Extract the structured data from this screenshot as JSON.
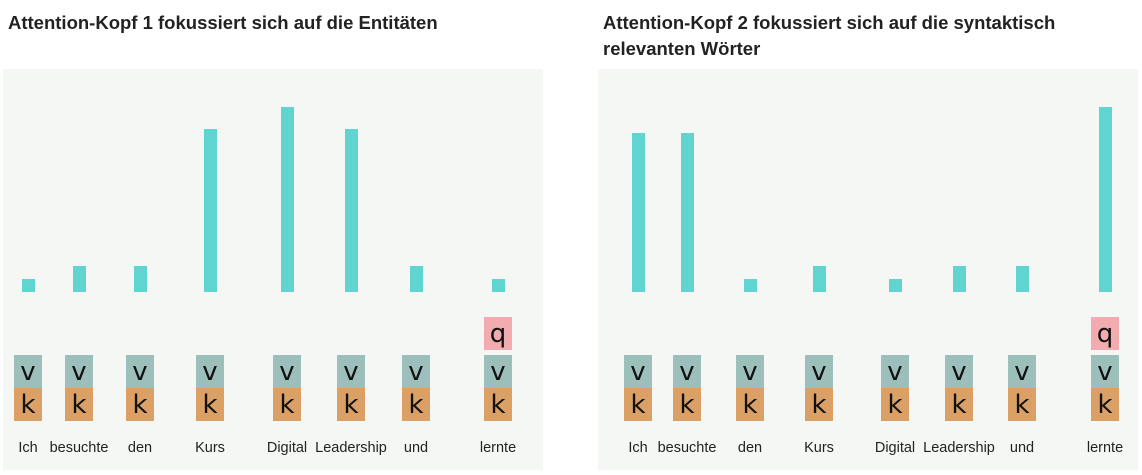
{
  "colors": {
    "panel_bg": "#f5f7f4",
    "bar": "#5fd4d0",
    "value_cell": "#9cbfbc",
    "key_cell": "#dba065",
    "query_cell": "#f2abae"
  },
  "panels": [
    {
      "title": "Attention-Kopf 1 fokussiert sich auf die Entitäten",
      "query_label": "q",
      "query_token_index": 7,
      "tokens": [
        {
          "word": "Ich",
          "v": "v",
          "k": "k",
          "weight": 0.07
        },
        {
          "word": "besuchte",
          "v": "v",
          "k": "k",
          "weight": 0.14
        },
        {
          "word": "den",
          "v": "v",
          "k": "k",
          "weight": 0.14
        },
        {
          "word": "Kurs",
          "v": "v",
          "k": "k",
          "weight": 0.88
        },
        {
          "word": "Digital",
          "v": "v",
          "k": "k",
          "weight": 1.0
        },
        {
          "word": "Leadership",
          "v": "v",
          "k": "k",
          "weight": 0.88
        },
        {
          "word": "und",
          "v": "v",
          "k": "k",
          "weight": 0.14
        },
        {
          "word": "lernte",
          "v": "v",
          "k": "k",
          "weight": 0.07
        }
      ]
    },
    {
      "title": "Attention-Kopf 2 fokussiert sich auf die syntaktisch relevanten Wörter",
      "query_label": "q",
      "query_token_index": 7,
      "tokens": [
        {
          "word": "Ich",
          "v": "v",
          "k": "k",
          "weight": 0.86
        },
        {
          "word": "besuchte",
          "v": "v",
          "k": "k",
          "weight": 0.86
        },
        {
          "word": "den",
          "v": "v",
          "k": "k",
          "weight": 0.07
        },
        {
          "word": "Kurs",
          "v": "v",
          "k": "k",
          "weight": 0.14
        },
        {
          "word": "Digital",
          "v": "v",
          "k": "k",
          "weight": 0.07
        },
        {
          "word": "Leadership",
          "v": "v",
          "k": "k",
          "weight": 0.14
        },
        {
          "word": "und",
          "v": "v",
          "k": "k",
          "weight": 0.14
        },
        {
          "word": "lernte",
          "v": "v",
          "k": "k",
          "weight": 1.0
        }
      ]
    }
  ]
}
